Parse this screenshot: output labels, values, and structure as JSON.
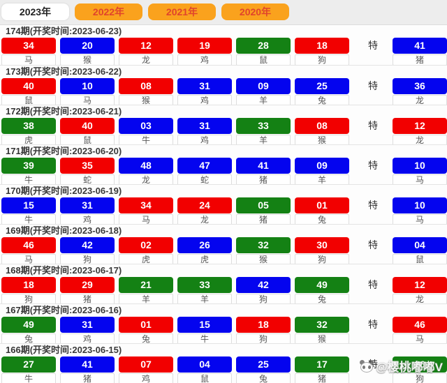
{
  "tabs": [
    {
      "label": "2023年",
      "active": true
    },
    {
      "label": "2022年",
      "active": false
    },
    {
      "label": "2021年",
      "active": false
    },
    {
      "label": "2020年",
      "active": false
    }
  ],
  "special_label": "特",
  "watermark": {
    "icon": "panda-icon",
    "text": "@樱桃嘟嘟V"
  },
  "colors": {
    "ball_red": "#f20000",
    "ball_blue": "#0404ef",
    "ball_green": "#148114",
    "tab_orange": "#faa21d",
    "tab_text_red": "#e0442c",
    "active_tab_bg": "#ffffff"
  },
  "draws": [
    {
      "period": "174期",
      "time_label": "(开奖时间:2023-06-23)",
      "balls": [
        {
          "n": "34",
          "c": "red",
          "z": "马"
        },
        {
          "n": "20",
          "c": "blue",
          "z": "猴"
        },
        {
          "n": "12",
          "c": "red",
          "z": "龙"
        },
        {
          "n": "19",
          "c": "red",
          "z": "鸡"
        },
        {
          "n": "28",
          "c": "green",
          "z": "鼠"
        },
        {
          "n": "18",
          "c": "red",
          "z": "狗"
        }
      ],
      "special": {
        "n": "41",
        "c": "blue",
        "z": "猪"
      }
    },
    {
      "period": "173期",
      "time_label": "(开奖时间:2023-06-22)",
      "balls": [
        {
          "n": "40",
          "c": "red",
          "z": "鼠"
        },
        {
          "n": "10",
          "c": "blue",
          "z": "马"
        },
        {
          "n": "08",
          "c": "red",
          "z": "猴"
        },
        {
          "n": "31",
          "c": "blue",
          "z": "鸡"
        },
        {
          "n": "09",
          "c": "blue",
          "z": "羊"
        },
        {
          "n": "25",
          "c": "blue",
          "z": "兔"
        }
      ],
      "special": {
        "n": "36",
        "c": "blue",
        "z": "龙"
      }
    },
    {
      "period": "172期",
      "time_label": "(开奖时间:2023-06-21)",
      "balls": [
        {
          "n": "38",
          "c": "green",
          "z": "虎"
        },
        {
          "n": "40",
          "c": "red",
          "z": "鼠"
        },
        {
          "n": "03",
          "c": "blue",
          "z": "牛"
        },
        {
          "n": "31",
          "c": "blue",
          "z": "鸡"
        },
        {
          "n": "33",
          "c": "green",
          "z": "羊"
        },
        {
          "n": "08",
          "c": "red",
          "z": "猴"
        }
      ],
      "special": {
        "n": "12",
        "c": "red",
        "z": "龙"
      }
    },
    {
      "period": "171期",
      "time_label": "(开奖时间:2023-06-20)",
      "balls": [
        {
          "n": "39",
          "c": "green",
          "z": "牛"
        },
        {
          "n": "35",
          "c": "red",
          "z": "蛇"
        },
        {
          "n": "48",
          "c": "blue",
          "z": "龙"
        },
        {
          "n": "47",
          "c": "blue",
          "z": "蛇"
        },
        {
          "n": "41",
          "c": "blue",
          "z": "猪"
        },
        {
          "n": "09",
          "c": "blue",
          "z": "羊"
        }
      ],
      "special": {
        "n": "10",
        "c": "blue",
        "z": "马"
      }
    },
    {
      "period": "170期",
      "time_label": "(开奖时间:2023-06-19)",
      "balls": [
        {
          "n": "15",
          "c": "blue",
          "z": "牛"
        },
        {
          "n": "31",
          "c": "blue",
          "z": "鸡"
        },
        {
          "n": "34",
          "c": "red",
          "z": "马"
        },
        {
          "n": "24",
          "c": "red",
          "z": "龙"
        },
        {
          "n": "05",
          "c": "green",
          "z": "猪"
        },
        {
          "n": "01",
          "c": "red",
          "z": "兔"
        }
      ],
      "special": {
        "n": "10",
        "c": "blue",
        "z": "马"
      }
    },
    {
      "period": "169期",
      "time_label": "(开奖时间:2023-06-18)",
      "balls": [
        {
          "n": "46",
          "c": "red",
          "z": "马"
        },
        {
          "n": "42",
          "c": "blue",
          "z": "狗"
        },
        {
          "n": "02",
          "c": "red",
          "z": "虎"
        },
        {
          "n": "26",
          "c": "blue",
          "z": "虎"
        },
        {
          "n": "32",
          "c": "green",
          "z": "猴"
        },
        {
          "n": "30",
          "c": "red",
          "z": "狗"
        }
      ],
      "special": {
        "n": "04",
        "c": "blue",
        "z": "鼠"
      }
    },
    {
      "period": "168期",
      "time_label": "(开奖时间:2023-06-17)",
      "balls": [
        {
          "n": "18",
          "c": "red",
          "z": "狗"
        },
        {
          "n": "29",
          "c": "red",
          "z": "猪"
        },
        {
          "n": "21",
          "c": "green",
          "z": "羊"
        },
        {
          "n": "33",
          "c": "green",
          "z": "羊"
        },
        {
          "n": "42",
          "c": "blue",
          "z": "狗"
        },
        {
          "n": "49",
          "c": "green",
          "z": "兔"
        }
      ],
      "special": {
        "n": "12",
        "c": "red",
        "z": "龙"
      }
    },
    {
      "period": "167期",
      "time_label": "(开奖时间:2023-06-16)",
      "balls": [
        {
          "n": "49",
          "c": "green",
          "z": "兔"
        },
        {
          "n": "31",
          "c": "blue",
          "z": "鸡"
        },
        {
          "n": "01",
          "c": "red",
          "z": "兔"
        },
        {
          "n": "15",
          "c": "blue",
          "z": "牛"
        },
        {
          "n": "18",
          "c": "red",
          "z": "狗"
        },
        {
          "n": "32",
          "c": "green",
          "z": "猴"
        }
      ],
      "special": {
        "n": "46",
        "c": "red",
        "z": "马"
      }
    },
    {
      "period": "166期",
      "time_label": "(开奖时间:2023-06-15)",
      "balls": [
        {
          "n": "27",
          "c": "green",
          "z": "牛"
        },
        {
          "n": "41",
          "c": "blue",
          "z": "猪"
        },
        {
          "n": "07",
          "c": "red",
          "z": "鸡"
        },
        {
          "n": "04",
          "c": "blue",
          "z": "鼠"
        },
        {
          "n": "25",
          "c": "blue",
          "z": "兔"
        },
        {
          "n": "17",
          "c": "green",
          "z": "猪"
        }
      ],
      "special": {
        "n": "06",
        "c": "green",
        "z": "狗"
      }
    }
  ]
}
